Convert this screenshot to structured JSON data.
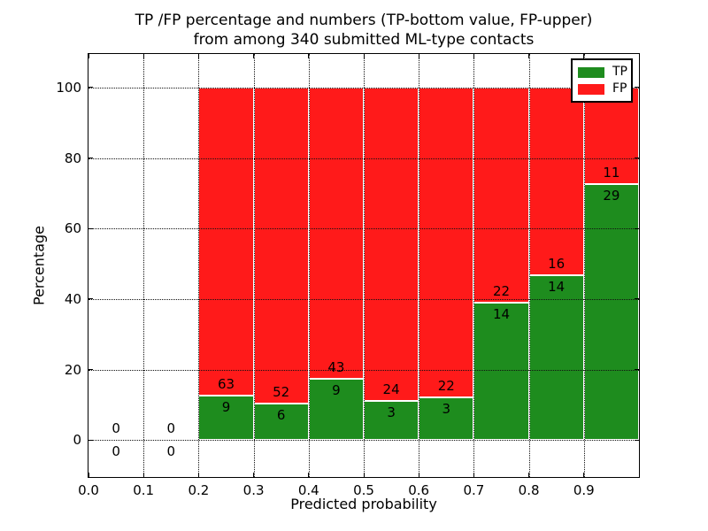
{
  "figure": {
    "title_line1": "TP /FP percentage and numbers (TP-bottom value, FP-upper)",
    "title_line2": "from among 340 submitted ML-type contacts"
  },
  "chart_data": {
    "type": "bar",
    "stacked": true,
    "title": "TP /FP percentage and numbers (TP-bottom value, FP-upper)\nfrom among 340 submitted ML-type contacts",
    "xlabel": "Predicted probability",
    "ylabel": "Percentage",
    "total_contacts": 340,
    "xlim": [
      0.0,
      1.0
    ],
    "ylim": [
      -10.5,
      109.5
    ],
    "x_ticks": [
      0.0,
      0.1,
      0.2,
      0.3,
      0.4,
      0.5,
      0.6,
      0.7,
      0.8,
      0.9
    ],
    "x_tick_labels": [
      "0.0",
      "0.1",
      "0.2",
      "0.3",
      "0.4",
      "0.5",
      "0.6",
      "0.7",
      "0.8",
      "0.9"
    ],
    "y_ticks": [
      0,
      20,
      40,
      60,
      80,
      100
    ],
    "y_tick_labels": [
      "0",
      "20",
      "40",
      "60",
      "80",
      "100"
    ],
    "grid": true,
    "colors": {
      "tp": "#1e8c1e",
      "fp": "#ff1a1a"
    },
    "legend": {
      "position": "upper right",
      "entries": [
        {
          "label": "TP",
          "color": "#1e8c1e"
        },
        {
          "label": "FP",
          "color": "#ff1a1a"
        }
      ]
    },
    "bins": [
      {
        "range": [
          0.0,
          0.1
        ],
        "tp": 0,
        "fp": 0,
        "tp_pct": 0,
        "fp_pct": 0
      },
      {
        "range": [
          0.1,
          0.2
        ],
        "tp": 0,
        "fp": 0,
        "tp_pct": 0,
        "fp_pct": 0
      },
      {
        "range": [
          0.2,
          0.3
        ],
        "tp": 9,
        "fp": 63,
        "tp_pct": 12.5,
        "fp_pct": 87.5
      },
      {
        "range": [
          0.3,
          0.4
        ],
        "tp": 6,
        "fp": 52,
        "tp_pct": 10.34,
        "fp_pct": 89.66
      },
      {
        "range": [
          0.4,
          0.5
        ],
        "tp": 9,
        "fp": 43,
        "tp_pct": 17.31,
        "fp_pct": 82.69
      },
      {
        "range": [
          0.5,
          0.6
        ],
        "tp": 3,
        "fp": 24,
        "tp_pct": 11.11,
        "fp_pct": 88.89
      },
      {
        "range": [
          0.6,
          0.7
        ],
        "tp": 3,
        "fp": 22,
        "tp_pct": 12.0,
        "fp_pct": 88.0
      },
      {
        "range": [
          0.7,
          0.8
        ],
        "tp": 14,
        "fp": 22,
        "tp_pct": 38.89,
        "fp_pct": 61.11
      },
      {
        "range": [
          0.8,
          0.9
        ],
        "tp": 14,
        "fp": 16,
        "tp_pct": 46.67,
        "fp_pct": 53.33
      },
      {
        "range": [
          0.9,
          1.0
        ],
        "tp": 29,
        "fp": 11,
        "tp_pct": 72.5,
        "fp_pct": 27.5
      }
    ]
  }
}
